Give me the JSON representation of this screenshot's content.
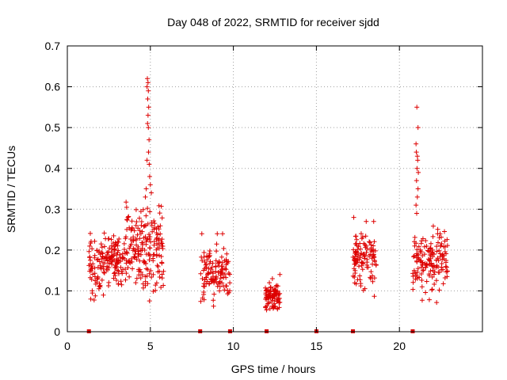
{
  "colors": {
    "series": "#dd0000",
    "axis": "#000000",
    "grid": "#a0a0a0",
    "background": "#ffffff"
  },
  "chart_data": {
    "type": "scatter",
    "title": "Day 048 of 2022, SRMTID for receiver sjdd",
    "xlabel": "GPS time / hours",
    "ylabel": "SRMTID / TECUs",
    "xlim": [
      0,
      25
    ],
    "ylim": [
      0,
      0.7
    ],
    "xticks": [
      0,
      5,
      10,
      15,
      20
    ],
    "xtick_labels": [
      "0",
      "5",
      "10",
      "15",
      "20"
    ],
    "yticks": [
      0,
      0.1,
      0.2,
      0.3,
      0.4,
      0.5,
      0.6,
      0.7
    ],
    "ytick_labels": [
      "0",
      "0.1",
      "0.2",
      "0.3",
      "0.4",
      "0.5",
      "0.6",
      "0.7"
    ],
    "grid": true,
    "marker": "+",
    "gap_markers_x": [
      1.3,
      8.0,
      9.8,
      12.0,
      15.0,
      17.2,
      20.8
    ],
    "clusters": [
      {
        "x_range": [
          1.3,
          2.5
        ],
        "y_range": [
          0.06,
          0.27
        ],
        "n": 90
      },
      {
        "x_range": [
          2.5,
          3.5
        ],
        "y_range": [
          0.1,
          0.26
        ],
        "n": 80
      },
      {
        "x_range": [
          3.5,
          4.5
        ],
        "y_range": [
          0.08,
          0.34
        ],
        "n": 80
      },
      {
        "x_range": [
          4.5,
          5.8
        ],
        "y_range": [
          0.06,
          0.35
        ],
        "n": 110
      },
      {
        "x_range": [
          8.0,
          9.8
        ],
        "y_range": [
          0.04,
          0.24
        ],
        "n": 120
      },
      {
        "x_range": [
          11.9,
          12.8
        ],
        "y_range": [
          0.04,
          0.13
        ],
        "n": 90
      },
      {
        "x_range": [
          17.2,
          18.6
        ],
        "y_range": [
          0.07,
          0.28
        ],
        "n": 110
      },
      {
        "x_range": [
          20.8,
          22.9
        ],
        "y_range": [
          0.06,
          0.28
        ],
        "n": 150
      }
    ],
    "points": [
      [
        4.82,
        0.62
      ],
      [
        4.86,
        0.61
      ],
      [
        4.8,
        0.6
      ],
      [
        4.88,
        0.59
      ],
      [
        4.84,
        0.57
      ],
      [
        4.9,
        0.55
      ],
      [
        4.86,
        0.53
      ],
      [
        4.83,
        0.51
      ],
      [
        4.88,
        0.5
      ],
      [
        4.92,
        0.47
      ],
      [
        4.89,
        0.44
      ],
      [
        4.8,
        0.42
      ],
      [
        4.93,
        0.41
      ],
      [
        4.96,
        0.38
      ],
      [
        4.75,
        0.35
      ],
      [
        5.0,
        0.36
      ],
      [
        5.06,
        0.34
      ],
      [
        4.7,
        0.33
      ],
      [
        21.05,
        0.55
      ],
      [
        21.12,
        0.5
      ],
      [
        21.0,
        0.46
      ],
      [
        21.02,
        0.44
      ],
      [
        21.08,
        0.43
      ],
      [
        21.1,
        0.42
      ],
      [
        21.06,
        0.4
      ],
      [
        21.14,
        0.39
      ],
      [
        21.03,
        0.37
      ],
      [
        21.12,
        0.35
      ],
      [
        21.08,
        0.33
      ],
      [
        21.0,
        0.31
      ],
      [
        21.04,
        0.29
      ],
      [
        9.03,
        0.24
      ],
      [
        9.35,
        0.24
      ],
      [
        8.1,
        0.24
      ],
      [
        18.0,
        0.27
      ],
      [
        18.45,
        0.27
      ],
      [
        17.25,
        0.28
      ],
      [
        22.3,
        0.24
      ],
      [
        22.45,
        0.24
      ],
      [
        12.8,
        0.14
      ],
      [
        12.35,
        0.13
      ]
    ]
  }
}
